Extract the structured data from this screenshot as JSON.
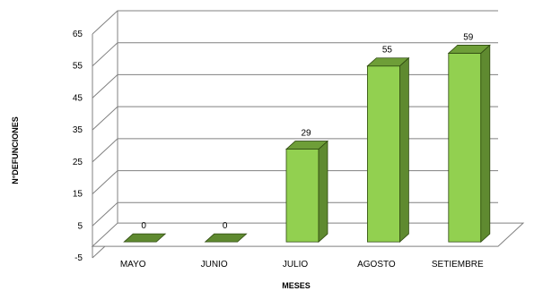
{
  "chart_data": {
    "type": "bar",
    "categories": [
      "MAYO",
      "JUNIO",
      "JULIO",
      "AGOSTO",
      "SETIEMBRE"
    ],
    "values": [
      0,
      0,
      29,
      55,
      59
    ],
    "data_labels": [
      "0",
      "0",
      "29",
      "55",
      "59"
    ],
    "xlabel": "MESES",
    "ylabel": "N°DEFUNCIONES",
    "ylim": [
      -5,
      65
    ],
    "yticks": [
      -5,
      5,
      15,
      25,
      35,
      45,
      55,
      65
    ],
    "ytick_labels": [
      "-5",
      "5",
      "15",
      "25",
      "35",
      "45",
      "55",
      "65"
    ],
    "grid": true,
    "style": "3d-column",
    "colors": {
      "bar_front": "#92D050",
      "bar_side": "#5F8A30",
      "bar_top": "#6E9E38",
      "bar_edge": "#2F4A10",
      "grid": "#808080"
    }
  }
}
